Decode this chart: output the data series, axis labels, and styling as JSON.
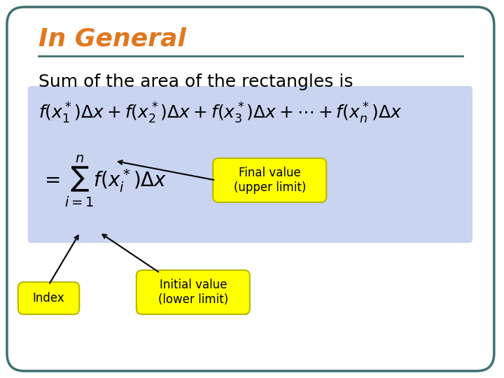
{
  "title": "In General",
  "title_color": "#E07820",
  "subtitle": "Sum of the area of the rectangles is",
  "subtitle_color": "#000000",
  "bg_color": "#FFFFFF",
  "border_color": "#3D7070",
  "blue_box_color": "#C8D4F0",
  "yellow_color": "#FFFF00",
  "yellow_border": "#B8B800",
  "formula_top": "$f(x_1^*)\\Delta x + f(x_2^*)\\Delta x + f(x_3^*)\\Delta x + \\cdots + f(x_n^*)\\Delta x$",
  "formula_bottom": "$= \\sum_{i=1}^{n} f(x_i^*)\\Delta x$",
  "callout_final": "Final value\n(upper limit)",
  "callout_index": "Index",
  "callout_initial": "Initial value\n(lower limit)"
}
